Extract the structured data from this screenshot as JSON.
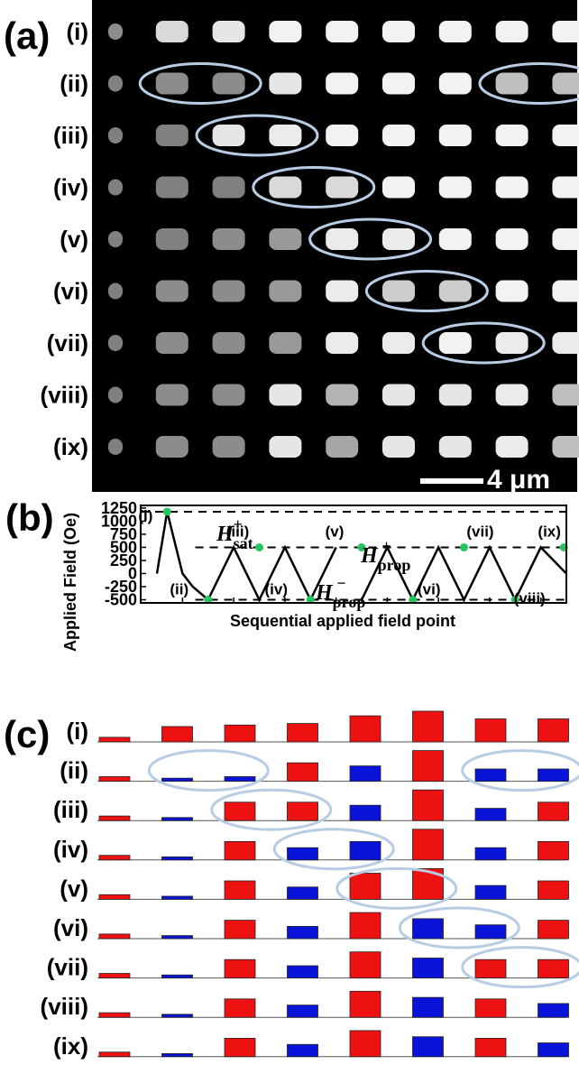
{
  "panels": {
    "a": {
      "letter": "(a)",
      "scale_bar": "4 μm"
    },
    "b": {
      "letter": "(b)"
    },
    "c": {
      "letter": "(c)"
    }
  },
  "row_labels": [
    "(i)",
    "(ii)",
    "(iii)",
    "(iv)",
    "(v)",
    "(vi)",
    "(vii)",
    "(viii)",
    "(ix)"
  ],
  "colors": {
    "positive": "#ee1111",
    "negative": "#0a14d8",
    "ellipse": "#b8cce4",
    "marker": "#22c55e"
  },
  "moke_images": {
    "columns": 9,
    "brightness": [
      [
        0.55,
        0.85,
        0.9,
        0.95,
        0.95,
        0.95,
        0.95,
        0.95,
        0.95
      ],
      [
        0.5,
        0.55,
        0.55,
        0.9,
        0.95,
        0.95,
        0.95,
        0.75,
        0.75
      ],
      [
        0.5,
        0.5,
        0.9,
        0.92,
        0.95,
        0.95,
        0.95,
        0.95,
        0.95
      ],
      [
        0.5,
        0.5,
        0.5,
        0.85,
        0.85,
        0.95,
        0.95,
        0.95,
        0.95
      ],
      [
        0.5,
        0.5,
        0.55,
        0.6,
        0.92,
        0.92,
        0.95,
        0.95,
        0.95
      ],
      [
        0.5,
        0.55,
        0.55,
        0.6,
        0.92,
        0.8,
        0.8,
        0.95,
        0.95
      ],
      [
        0.5,
        0.55,
        0.55,
        0.6,
        0.92,
        0.92,
        0.95,
        0.92,
        0.92
      ],
      [
        0.5,
        0.55,
        0.55,
        0.9,
        0.7,
        0.9,
        0.9,
        0.92,
        0.75
      ],
      [
        0.5,
        0.55,
        0.55,
        0.9,
        0.65,
        0.9,
        0.9,
        0.92,
        0.75
      ]
    ],
    "circled": [
      {
        "row": 1,
        "cols": [
          1,
          2
        ]
      },
      {
        "row": 1,
        "cols": [
          7,
          8
        ]
      },
      {
        "row": 2,
        "cols": [
          2,
          3
        ]
      },
      {
        "row": 3,
        "cols": [
          3,
          4
        ]
      },
      {
        "row": 4,
        "cols": [
          4,
          5
        ]
      },
      {
        "row": 5,
        "cols": [
          5,
          6
        ]
      },
      {
        "row": 6,
        "cols": [
          6,
          7
        ]
      }
    ]
  },
  "chart_data": [
    {
      "type": "line",
      "panel": "(b)",
      "ylabel": "Applied Field (Oe)",
      "xlabel": "Sequential applied field point",
      "yticks": [
        1250,
        1000,
        750,
        500,
        250,
        0,
        -250,
        -500
      ],
      "ylim": [
        -560,
        1300
      ],
      "xlim": [
        0,
        16
      ],
      "x": [
        0,
        0.4,
        1,
        1.4,
        2,
        3,
        4,
        5,
        6,
        7,
        8,
        9,
        10,
        11,
        12,
        13,
        14,
        15,
        16
      ],
      "y": [
        0,
        1180,
        0,
        -250,
        -500,
        500,
        -500,
        500,
        -500,
        500,
        -500,
        500,
        -500,
        500,
        -500,
        500,
        -500,
        500,
        0
      ],
      "gaps": [
        [
          7,
          9
        ]
      ],
      "points": [
        {
          "label": "(i)",
          "x": 0.4,
          "y": 1180
        },
        {
          "label": "(ii)",
          "x": 2,
          "y": -500
        },
        {
          "label": "(iii)",
          "x": 4,
          "y": 500
        },
        {
          "label": "(iv)",
          "x": 6,
          "y": -500
        },
        {
          "label": "(v)",
          "x": 8,
          "y": 500
        },
        {
          "label": "(vi)",
          "x": 10,
          "y": -500
        },
        {
          "label": "(vii)",
          "x": 12,
          "y": 500
        },
        {
          "label": "(viii)",
          "x": 14,
          "y": -500
        },
        {
          "label": "(ix)",
          "x": 15.9,
          "y": 500
        }
      ],
      "reference_lines": [
        {
          "name": "H_sat^+",
          "y": 1180
        },
        {
          "name": "H_prop^+",
          "y": 500
        },
        {
          "name": "H_prop^-",
          "y": -500
        }
      ],
      "annotations": {
        "sat": {
          "base": "H",
          "sub": "sat",
          "sup": "+"
        },
        "prop_plus": {
          "base": "H",
          "sub": "prop",
          "sup": "+"
        },
        "prop_minus": {
          "base": "H",
          "sub": "prop",
          "sup": "−"
        }
      }
    },
    {
      "type": "bar",
      "panel": "(c)",
      "rows": [
        "(i)",
        "(ii)",
        "(iii)",
        "(iv)",
        "(v)",
        "(vi)",
        "(vii)",
        "(viii)",
        "(ix)"
      ],
      "columns": 8,
      "series_note_colors": "red = positive, blue = negative",
      "values": [
        [
          0.15,
          0.5,
          0.55,
          0.6,
          0.85,
          1.0,
          0.75,
          0.75
        ],
        [
          0.15,
          -0.1,
          -0.15,
          0.6,
          -0.5,
          1.0,
          -0.4,
          -0.4
        ],
        [
          0.15,
          -0.1,
          0.6,
          0.6,
          -0.5,
          1.0,
          -0.4,
          0.6
        ],
        [
          0.15,
          -0.1,
          0.6,
          -0.4,
          -0.6,
          1.0,
          -0.4,
          0.6
        ],
        [
          0.15,
          -0.1,
          0.6,
          -0.4,
          0.85,
          1.0,
          -0.45,
          0.6
        ],
        [
          0.15,
          -0.1,
          0.6,
          -0.4,
          0.85,
          -0.65,
          -0.45,
          0.6
        ],
        [
          0.15,
          -0.1,
          0.6,
          -0.4,
          0.85,
          -0.65,
          0.6,
          0.6
        ],
        [
          0.15,
          -0.1,
          0.6,
          -0.4,
          0.85,
          -0.65,
          0.6,
          -0.45
        ],
        [
          0.15,
          -0.1,
          0.6,
          -0.4,
          0.85,
          -0.65,
          0.6,
          -0.45
        ]
      ],
      "circled": [
        {
          "row": 1,
          "cols": [
            1,
            2
          ]
        },
        {
          "row": 1,
          "cols": [
            6,
            7
          ]
        },
        {
          "row": 2,
          "cols": [
            2,
            3
          ]
        },
        {
          "row": 3,
          "cols": [
            3,
            4
          ]
        },
        {
          "row": 4,
          "cols": [
            4,
            5
          ]
        },
        {
          "row": 5,
          "cols": [
            5,
            6
          ]
        },
        {
          "row": 6,
          "cols": [
            6,
            7
          ]
        }
      ]
    }
  ]
}
